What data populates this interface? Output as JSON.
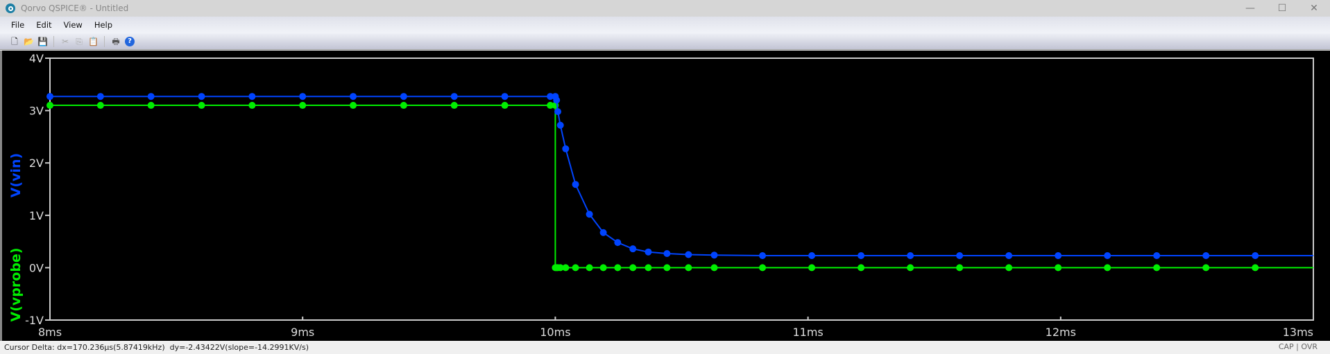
{
  "window": {
    "title": "Qorvo QSPICE® - Untitled",
    "minimize": "—",
    "maximize": "☐",
    "close": "✕"
  },
  "menu": [
    "File",
    "Edit",
    "View",
    "Help"
  ],
  "toolbar": [
    {
      "icon": "new-file-icon",
      "glyph": "🗋"
    },
    {
      "icon": "open-folder-icon",
      "glyph": "📂"
    },
    {
      "icon": "save-icon",
      "glyph": "💾"
    },
    {
      "icon": "cut-icon",
      "glyph": "✂"
    },
    {
      "icon": "copy-icon",
      "glyph": "⎘"
    },
    {
      "icon": "paste-icon",
      "glyph": "📋"
    },
    {
      "icon": "print-icon",
      "glyph": "🖶"
    },
    {
      "icon": "help-icon",
      "glyph": "?"
    }
  ],
  "status": {
    "text": "Cursor Delta: dx=170.236µs(5.87419kHz)  dy=-2.43422V(slope=-14.2991KV/s)",
    "cap": "CAP",
    "ovr": "OVR"
  },
  "chart_data": {
    "type": "line",
    "xlim": [
      8,
      13
    ],
    "ylim": [
      -1,
      4
    ],
    "x_ticks": [
      "8ms",
      "9ms",
      "10ms",
      "11ms",
      "12ms",
      "13ms"
    ],
    "y_ticks": [
      "-1V",
      "0V",
      "1V",
      "2V",
      "3V",
      "4V"
    ],
    "grid": false,
    "series": [
      {
        "name": "V(vin)",
        "color": "#0044ff",
        "x": [
          8,
          8.2,
          8.4,
          8.6,
          8.8,
          9,
          9.2,
          9.4,
          9.6,
          9.8,
          9.98,
          10.0,
          10.005,
          10.01,
          10.02,
          10.041,
          10.08,
          10.135,
          10.19,
          10.247,
          10.307,
          10.368,
          10.442,
          10.527,
          10.629,
          10.82,
          11.015,
          11.21,
          11.405,
          11.6,
          11.795,
          11.99,
          12.185,
          12.38,
          12.575,
          12.77,
          13
        ],
        "y": [
          3.27,
          3.27,
          3.27,
          3.27,
          3.27,
          3.27,
          3.27,
          3.27,
          3.27,
          3.27,
          3.27,
          3.27,
          3.2,
          2.98,
          2.72,
          2.27,
          1.59,
          1.02,
          0.67,
          0.48,
          0.36,
          0.3,
          0.27,
          0.25,
          0.24,
          0.23,
          0.23,
          0.23,
          0.23,
          0.23,
          0.23,
          0.23,
          0.23,
          0.23,
          0.23,
          0.23,
          0.23
        ]
      },
      {
        "name": "V(vprobe)",
        "color": "#00ee00",
        "x": [
          8,
          8.2,
          8.4,
          8.6,
          8.8,
          9,
          9.2,
          9.4,
          9.6,
          9.8,
          9.98,
          10.0,
          10.0,
          10.005,
          10.01,
          10.02,
          10.041,
          10.08,
          10.135,
          10.19,
          10.247,
          10.307,
          10.368,
          10.442,
          10.527,
          10.629,
          10.82,
          11.015,
          11.21,
          11.405,
          11.6,
          11.795,
          11.99,
          12.185,
          12.38,
          12.575,
          12.77,
          13
        ],
        "y": [
          3.1,
          3.1,
          3.1,
          3.1,
          3.1,
          3.1,
          3.1,
          3.1,
          3.1,
          3.1,
          3.1,
          3.1,
          0,
          0,
          0,
          0,
          0,
          0,
          0,
          0,
          0,
          0,
          0,
          0,
          0,
          0,
          0,
          0,
          0,
          0,
          0,
          0,
          0,
          0,
          0,
          0,
          0,
          0
        ]
      }
    ]
  }
}
